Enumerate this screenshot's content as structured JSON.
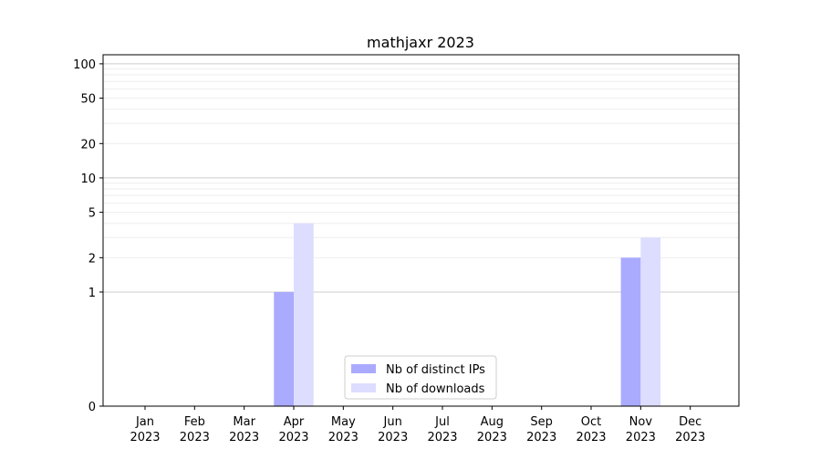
{
  "chart_data": {
    "type": "bar",
    "title": "mathjaxr 2023",
    "xlabel": "",
    "ylabel": "",
    "yscale": "symlog",
    "ylim": [
      0,
      120
    ],
    "grid": "horizontal",
    "legend_position": "bottom-center",
    "categories": [
      {
        "month": "Jan",
        "year": "2023"
      },
      {
        "month": "Feb",
        "year": "2023"
      },
      {
        "month": "Mar",
        "year": "2023"
      },
      {
        "month": "Apr",
        "year": "2023"
      },
      {
        "month": "May",
        "year": "2023"
      },
      {
        "month": "Jun",
        "year": "2023"
      },
      {
        "month": "Jul",
        "year": "2023"
      },
      {
        "month": "Aug",
        "year": "2023"
      },
      {
        "month": "Sep",
        "year": "2023"
      },
      {
        "month": "Oct",
        "year": "2023"
      },
      {
        "month": "Nov",
        "year": "2023"
      },
      {
        "month": "Dec",
        "year": "2023"
      }
    ],
    "y_ticks": [
      {
        "value": 0,
        "label": "0"
      },
      {
        "value": 1,
        "label": "1"
      },
      {
        "value": 2,
        "label": "2"
      },
      {
        "value": 5,
        "label": "5"
      },
      {
        "value": 10,
        "label": "10"
      },
      {
        "value": 20,
        "label": "20"
      },
      {
        "value": 50,
        "label": "50"
      },
      {
        "value": 100,
        "label": "100"
      }
    ],
    "series": [
      {
        "name": "Nb of distinct IPs",
        "color": "#aaaaff",
        "values": [
          0,
          0,
          0,
          1,
          0,
          0,
          0,
          0,
          0,
          0,
          2,
          0
        ]
      },
      {
        "name": "Nb of downloads",
        "color": "#ddddff",
        "values": [
          0,
          0,
          0,
          4,
          0,
          0,
          0,
          0,
          0,
          0,
          3,
          0
        ]
      }
    ]
  }
}
